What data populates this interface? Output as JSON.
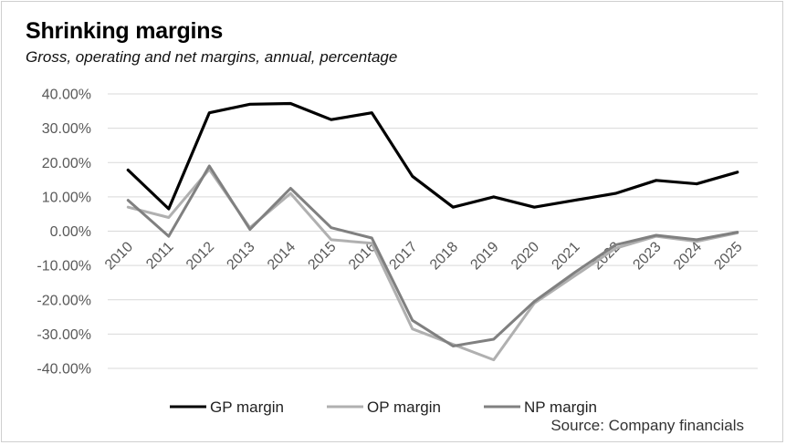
{
  "chart_data": {
    "type": "line",
    "title": "Shrinking margins",
    "subtitle": "Gross, operating and net margins, annual, percentage",
    "source": "Source: Company financials",
    "categories": [
      "2010",
      "2011",
      "2012",
      "2013",
      "2014",
      "2015",
      "2016",
      "2017",
      "2018",
      "2019",
      "2020",
      "2021",
      "2022",
      "2023",
      "2024",
      "2025"
    ],
    "ylim": [
      -40,
      40
    ],
    "yticks": [
      "40.00%",
      "30.00%",
      "20.00%",
      "10.00%",
      "0.00%",
      "-10.00%",
      "-20.00%",
      "-30.00%",
      "-40.00%"
    ],
    "ytick_values": [
      40,
      30,
      20,
      10,
      0,
      -10,
      -20,
      -30,
      -40
    ],
    "grid": true,
    "legend_position": "bottom",
    "series": [
      {
        "name": "GP margin",
        "color": "#000000",
        "values": [
          17.8,
          6.5,
          34.5,
          37.0,
          37.2,
          32.5,
          34.5,
          16.0,
          7.0,
          10.0,
          7.0,
          9.0,
          11.0,
          14.8,
          13.8,
          17.2
        ]
      },
      {
        "name": "OP margin",
        "color": "#b0b0b0",
        "values": [
          7.0,
          4.0,
          18.0,
          1.0,
          11.0,
          -2.5,
          -3.5,
          -28.5,
          -33.0,
          -37.5,
          -21.0,
          -13.0,
          -5.0,
          -1.5,
          -3.0,
          -0.5
        ]
      },
      {
        "name": "NP margin",
        "color": "#808080",
        "values": [
          9.0,
          -1.5,
          19.0,
          0.5,
          12.5,
          1.0,
          -2.0,
          -26.0,
          -33.5,
          -31.5,
          -20.5,
          -12.0,
          -4.0,
          -1.2,
          -2.5,
          -0.3
        ]
      }
    ]
  }
}
